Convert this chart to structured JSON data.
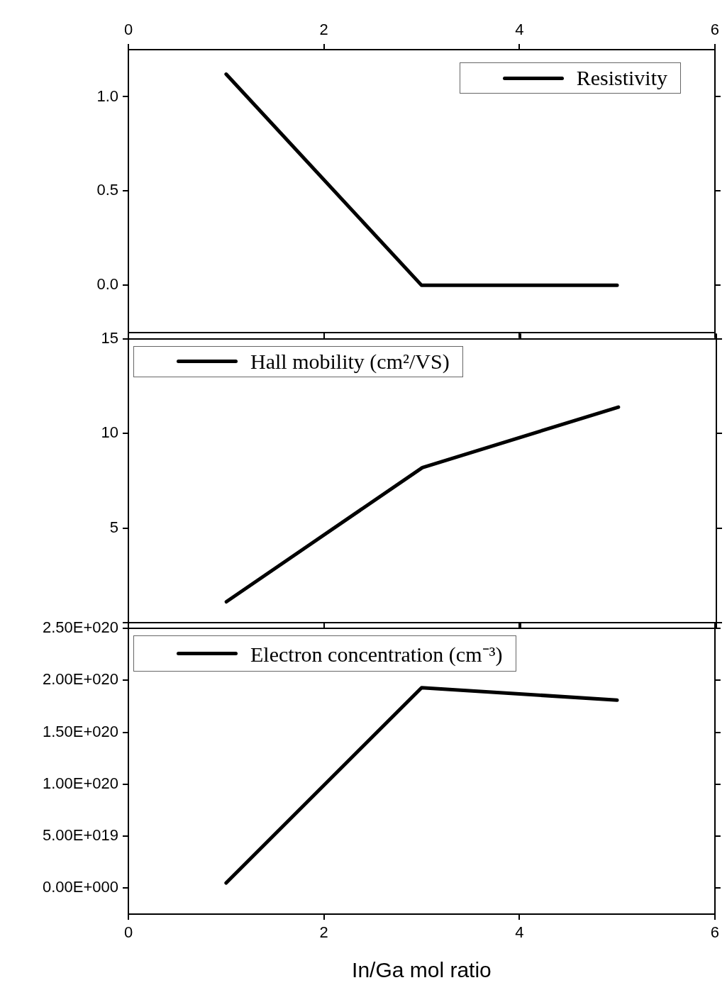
{
  "chart_data": [
    {
      "type": "line",
      "x": [
        1,
        3,
        5
      ],
      "series": [
        {
          "name": "Resistivity",
          "color": "#000000",
          "values": [
            1.12,
            0,
            0
          ]
        }
      ],
      "xlim": [
        0,
        6
      ],
      "xticks": [
        0,
        2,
        4,
        6
      ],
      "ylim": [
        -0.25,
        1.25
      ],
      "yticks": [
        {
          "value": 0,
          "label": "0.0"
        },
        {
          "value": 0.5,
          "label": "0.5"
        },
        {
          "value": 1,
          "label": "1.0"
        }
      ],
      "legend": "top right"
    },
    {
      "type": "line",
      "x": [
        1,
        3,
        5
      ],
      "series": [
        {
          "name": "Hall mobility (cm²/VS)",
          "color": "#000000",
          "values": [
            1.1,
            8.2,
            11.4
          ]
        }
      ],
      "xlim": [
        0,
        6
      ],
      "xticks": [
        0,
        2,
        4,
        6
      ],
      "ylim": [
        0,
        15
      ],
      "yticks": [
        {
          "value": 0,
          "label": null
        },
        5,
        10,
        15
      ],
      "tick_labels": "y",
      "legend": "top left"
    },
    {
      "type": "line",
      "x": [
        1,
        3,
        5
      ],
      "series": [
        {
          "name": "Electron concentration (cm⁻³)",
          "color": "#000000",
          "values": [
            5e+18,
            1.93e+20,
            1.81e+20
          ]
        }
      ],
      "xlim": [
        0,
        6
      ],
      "xticks": [
        0,
        2,
        4,
        6
      ],
      "xlabel": "In/Ga mol ratio",
      "ylim": [
        -2.5e+19,
        2.5e+20
      ],
      "yticks": [
        {
          "value": 0,
          "label": "0.00E+000"
        },
        {
          "value": 5e+19,
          "label": "5.00E+019"
        },
        {
          "value": 1e+20,
          "label": "1.00E+020"
        },
        {
          "value": 1.5e+20,
          "label": "1.50E+020"
        },
        {
          "value": 2e+20,
          "label": "2.00E+020"
        },
        {
          "value": 2.5e+20,
          "label": "2.50E+020"
        }
      ],
      "legend": "top left"
    }
  ]
}
